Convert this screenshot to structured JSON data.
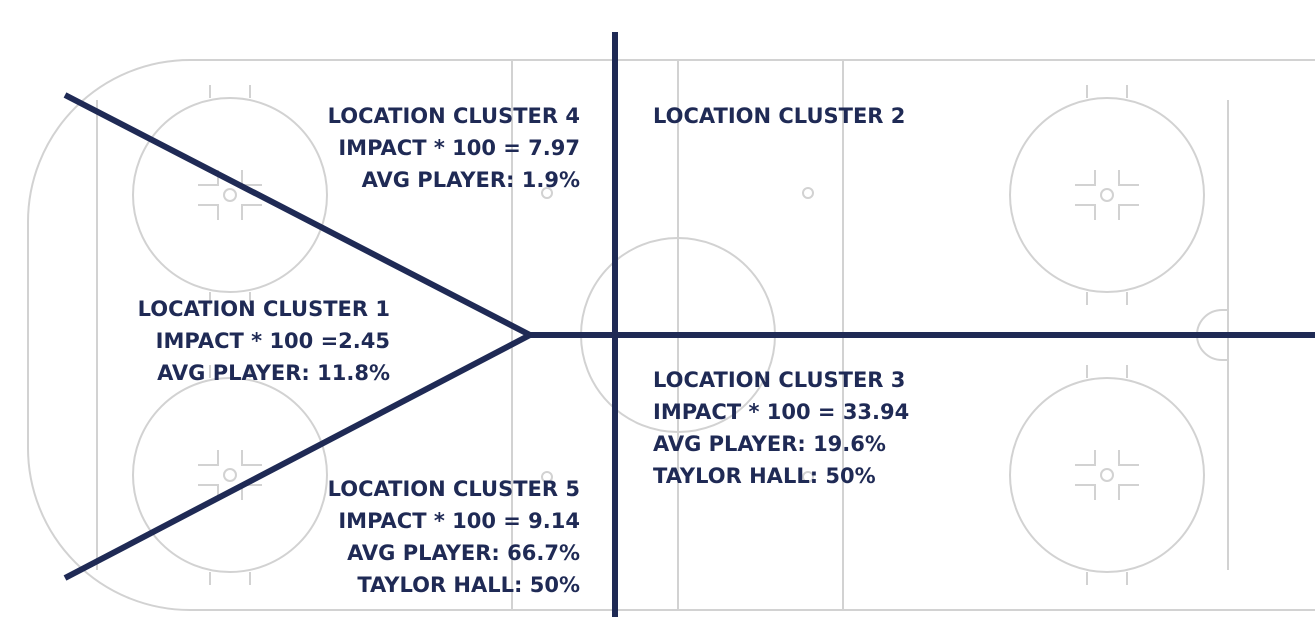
{
  "clusters": [
    {
      "lines": [
        "LOCATION CLUSTER 4",
        "IMPACT * 100 = 7.97",
        "AVG PLAYER: 1.9%"
      ]
    },
    {
      "lines": [
        "LOCATION CLUSTER 2"
      ]
    },
    {
      "lines": [
        "LOCATION CLUSTER 1",
        "IMPACT * 100 =2.45",
        "AVG PLAYER: 11.8%"
      ]
    },
    {
      "lines": [
        "LOCATION CLUSTER 3",
        "IMPACT * 100 = 33.94",
        "AVG PLAYER: 19.6%",
        "TAYLOR HALL: 50%"
      ]
    },
    {
      "lines": [
        "LOCATION CLUSTER 5",
        "IMPACT * 100 = 9.14",
        "AVG PLAYER: 66.7%",
        "TAYLOR HALL: 50%"
      ]
    }
  ]
}
